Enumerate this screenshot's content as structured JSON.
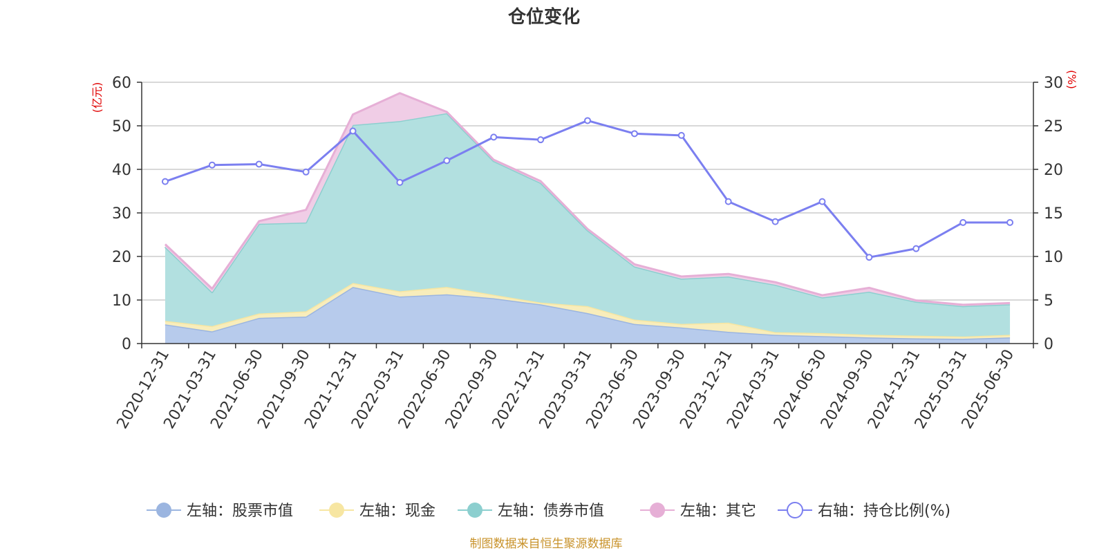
{
  "chart_data": {
    "type": "area",
    "title": "仓位变化",
    "left_unit": "(亿元)",
    "right_unit": "(%)",
    "source": "制图数据来自恒生聚源数据库",
    "categories": [
      "2020-12-31",
      "2021-03-31",
      "2021-06-30",
      "2021-09-30",
      "2021-12-31",
      "2022-03-31",
      "2022-06-30",
      "2022-09-30",
      "2022-12-31",
      "2023-03-31",
      "2023-06-30",
      "2023-09-30",
      "2023-12-31",
      "2024-03-31",
      "2024-06-30",
      "2024-09-30",
      "2024-12-31",
      "2025-03-31",
      "2025-06-30"
    ],
    "left_axis": {
      "min": 0,
      "max": 60,
      "ticks": [
        0,
        10,
        20,
        30,
        40,
        50,
        60
      ]
    },
    "right_axis": {
      "min": 0,
      "max": 30,
      "ticks": [
        0,
        5,
        10,
        15,
        20,
        25,
        30
      ]
    },
    "series": [
      {
        "name": "左轴：股票市值",
        "axis": "left",
        "stack": true,
        "color": "#9bb5e0",
        "fill": "#b7cbec",
        "values": [
          4.4,
          2.8,
          5.9,
          6.2,
          13.0,
          10.8,
          11.3,
          10.4,
          9.0,
          7.0,
          4.5,
          3.7,
          2.7,
          2.0,
          1.7,
          1.4,
          1.2,
          1.1,
          1.4
        ]
      },
      {
        "name": "左轴：现金",
        "axis": "left",
        "stack": true,
        "color": "#f7e6a2",
        "fill": "#f8edbb",
        "values": [
          0.8,
          1.2,
          1.0,
          1.2,
          0.9,
          1.2,
          1.7,
          0.8,
          0.4,
          1.6,
          1.0,
          0.8,
          2.1,
          0.6,
          0.7,
          0.6,
          0.6,
          0.5,
          0.6
        ]
      },
      {
        "name": "左轴：债券市值",
        "axis": "left",
        "stack": true,
        "color": "#8ccfcf",
        "fill": "#b2e0e0",
        "values": [
          17.0,
          7.8,
          20.6,
          20.4,
          36.3,
          39.1,
          39.9,
          30.7,
          27.5,
          17.4,
          12.2,
          10.4,
          10.6,
          10.9,
          8.2,
          9.9,
          7.8,
          7.0,
          7.0
        ]
      },
      {
        "name": "左轴：其它",
        "axis": "left",
        "stack": true,
        "color": "#e6afd6",
        "fill": "#f0cde6",
        "values": [
          0.6,
          0.8,
          0.6,
          2.9,
          2.4,
          6.4,
          0.3,
          0.3,
          0.4,
          0.3,
          0.5,
          0.5,
          0.6,
          0.6,
          0.5,
          0.9,
          0.3,
          0.3,
          0.3
        ]
      },
      {
        "name": "右轴：持仓比例(%)",
        "axis": "right",
        "stack": false,
        "color": "#7b7ff0",
        "values": [
          18.6,
          20.5,
          20.6,
          19.7,
          24.4,
          18.5,
          21.0,
          23.7,
          23.4,
          25.6,
          24.1,
          23.9,
          16.3,
          14.0,
          16.3,
          9.9,
          10.9,
          13.9,
          13.9
        ]
      }
    ]
  }
}
